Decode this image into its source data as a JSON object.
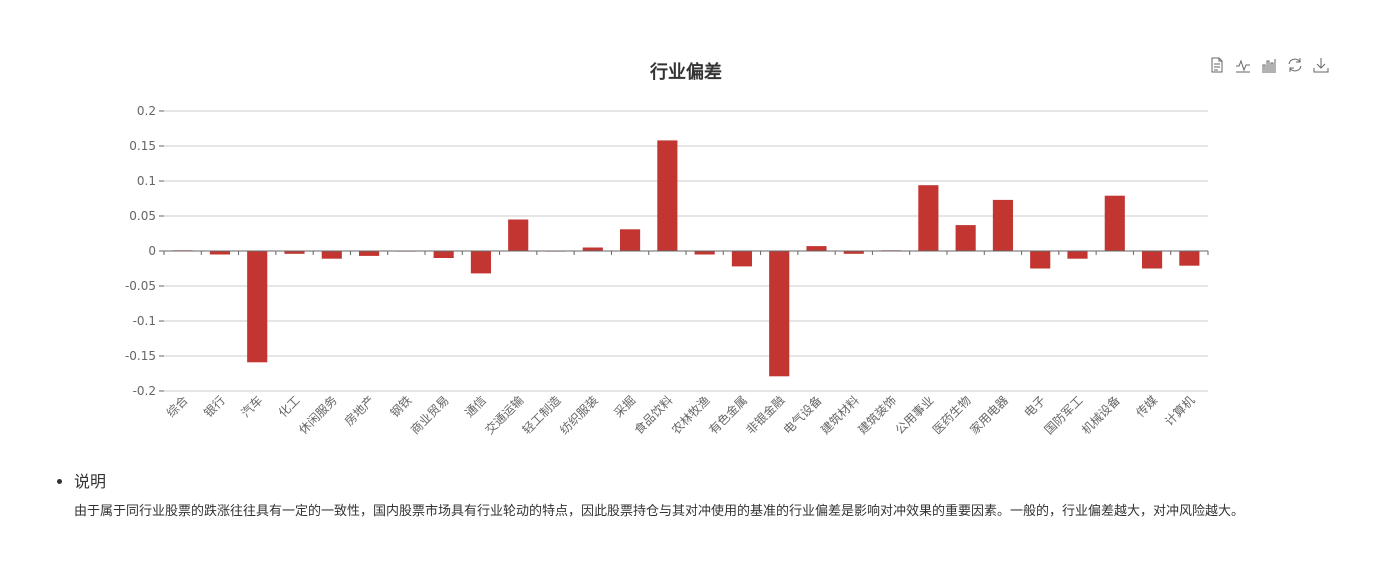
{
  "title": "行业偏差",
  "toolbox": {
    "items": [
      "data-view-icon",
      "line-chart-icon",
      "bar-chart-icon",
      "restore-icon",
      "download-icon"
    ]
  },
  "colors": {
    "bar": "#c23531",
    "grid": "#cccccc",
    "axis": "#666666",
    "text": "#333333"
  },
  "chart_data": {
    "type": "bar",
    "title": "行业偏差",
    "categories": [
      "综合",
      "银行",
      "汽车",
      "化工",
      "休闲服务",
      "房地产",
      "钢铁",
      "商业贸易",
      "通信",
      "交通运输",
      "轻工制造",
      "纺织服装",
      "采掘",
      "食品饮料",
      "农林牧渔",
      "有色金属",
      "非银金融",
      "电气设备",
      "建筑材料",
      "建筑装饰",
      "公用事业",
      "医药生物",
      "家用电器",
      "电子",
      "国防军工",
      "机械设备",
      "传媒",
      "计算机"
    ],
    "values": [
      0.001,
      -0.005,
      -0.159,
      -0.004,
      -0.011,
      -0.007,
      0.0,
      -0.01,
      -0.032,
      0.045,
      0.0,
      0.005,
      0.031,
      0.158,
      -0.005,
      -0.022,
      -0.179,
      0.007,
      -0.004,
      0.001,
      0.094,
      0.037,
      0.073,
      -0.025,
      -0.011,
      0.079,
      -0.025,
      -0.021
    ],
    "yticks": [
      "0.2",
      "0.15",
      "0.1",
      "0.05",
      "0",
      "-0.05",
      "-0.1",
      "-0.15",
      "-0.2"
    ],
    "ylim": [
      -0.2,
      0.2
    ],
    "xlabel": "",
    "ylabel": "",
    "grid": true,
    "legend": "none"
  },
  "notes": {
    "heading": "说明",
    "body": "由于属于同行业股票的跌涨往往具有一定的一致性，国内股票市场具有行业轮动的特点，因此股票持仓与其对冲使用的基准的行业偏差是影响对冲效果的重要因素。一般的，行业偏差越大，对冲风险越大。"
  }
}
